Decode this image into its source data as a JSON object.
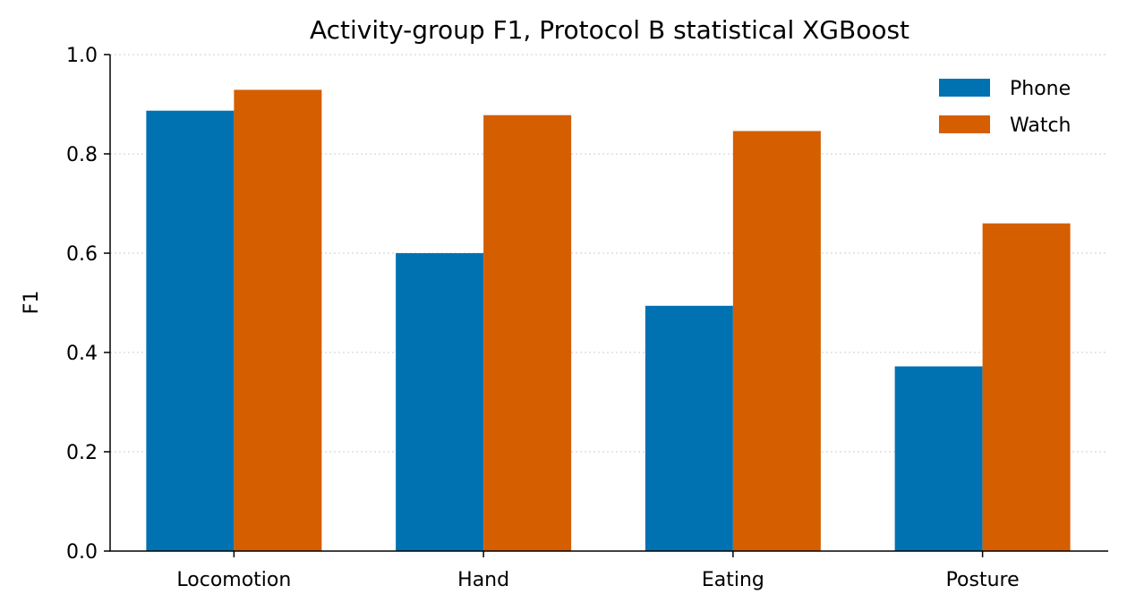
{
  "chart_data": {
    "type": "bar",
    "title": "Activity-group F1, Protocol B statistical XGBoost",
    "xlabel": "",
    "ylabel": "F1",
    "categories": [
      "Locomotion",
      "Hand",
      "Eating",
      "Posture"
    ],
    "series": [
      {
        "name": "Phone",
        "color": "#0072B2",
        "values": [
          0.887,
          0.6,
          0.494,
          0.372
        ]
      },
      {
        "name": "Watch",
        "color": "#D55E00",
        "values": [
          0.929,
          0.878,
          0.846,
          0.66
        ]
      }
    ],
    "ylim": [
      0,
      1.0
    ],
    "yticks": [
      "0.0",
      "0.2",
      "0.4",
      "0.6",
      "0.8",
      "1.0"
    ],
    "grid": "y-dotted",
    "legend_position": "top-right"
  }
}
